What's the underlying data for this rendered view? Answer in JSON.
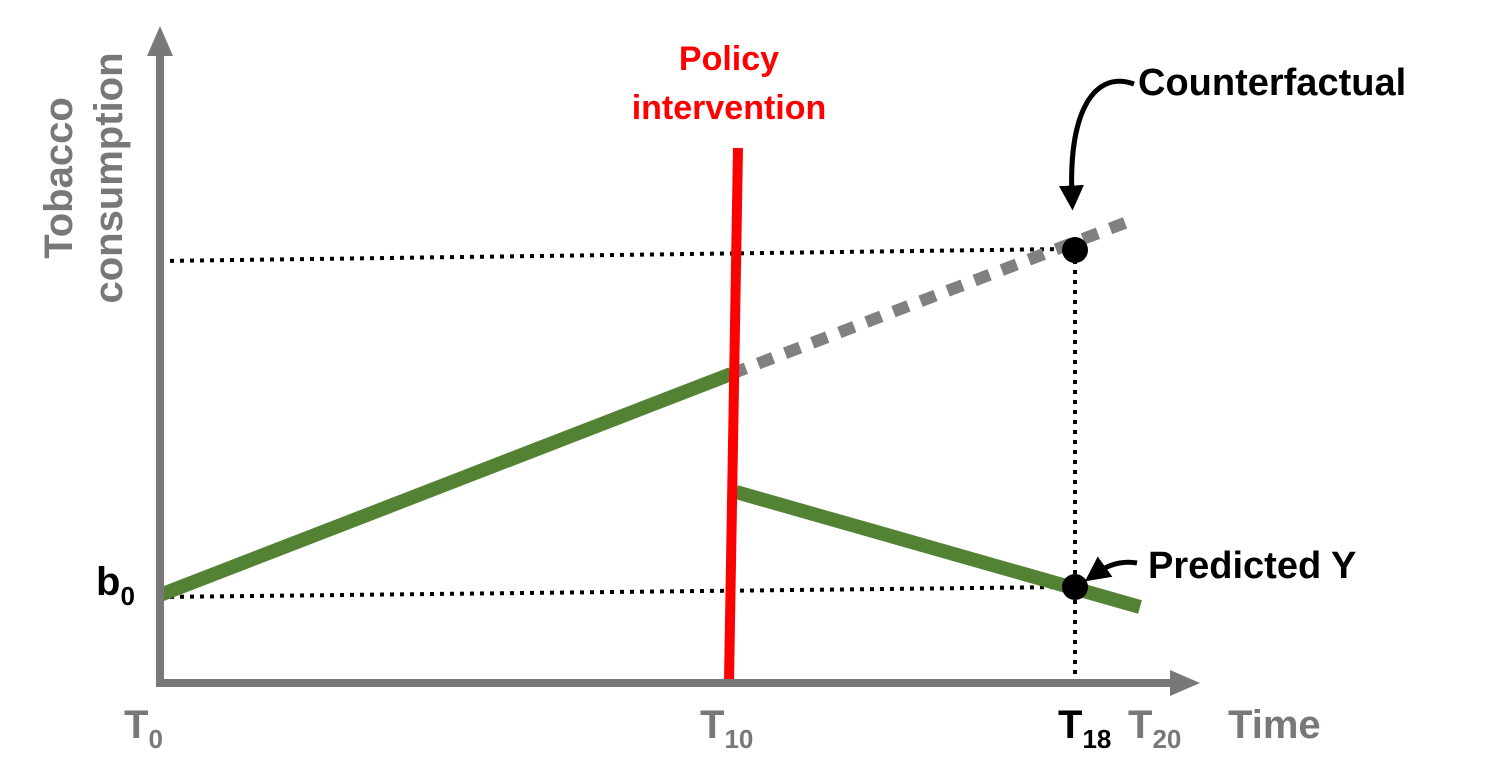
{
  "colors": {
    "axis": "#7a7777",
    "observed_line": "#548235",
    "counterfactual_line": "#808080",
    "intervention_line": "#ff0000",
    "guide_line": "#000000",
    "marker": "#000000",
    "dark_text": "#000000"
  },
  "axes": {
    "y_label_line1": "Tobacco",
    "y_label_line2": "consumption",
    "x_label": "Time"
  },
  "ticks": {
    "t0": {
      "main": "T",
      "sub": "0"
    },
    "t10": {
      "main": "T",
      "sub": "10"
    },
    "t18": {
      "main": "T",
      "sub": "18"
    },
    "t20": {
      "main": "T",
      "sub": "20"
    }
  },
  "intercept": {
    "main": "b",
    "sub": "0"
  },
  "annotations": {
    "policy_line1": "Policy",
    "policy_line2": "intervention",
    "counterfactual": "Counterfactual",
    "predicted": "Predicted Y"
  }
}
